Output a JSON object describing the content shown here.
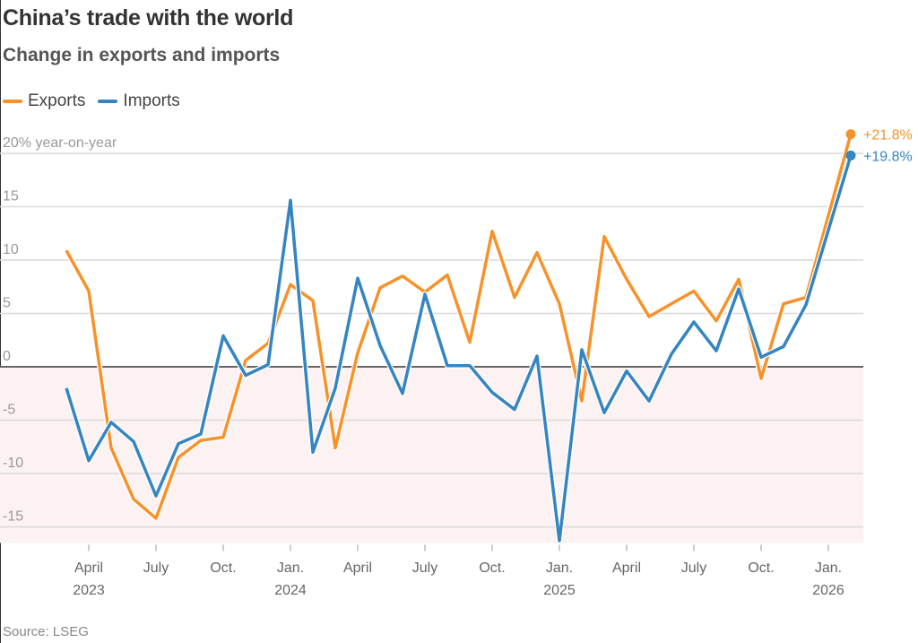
{
  "title": "China’s trade with the world",
  "subtitle": "Change in exports and imports",
  "source": "Source: LSEG",
  "colors": {
    "exports": "#f7922a",
    "imports": "#3585c1",
    "negative_band": "#fdf2f2",
    "grid": "#d9d9d9",
    "zero_line": "#666666"
  },
  "chart_data": {
    "type": "line",
    "title": "China’s trade with the world",
    "subtitle": "Change in exports and imports",
    "ylabel": "20% year-on-year",
    "ylim": [
      -16.5,
      20
    ],
    "yticks": [
      {
        "value": 20,
        "label": "20% year-on-year"
      },
      {
        "value": 15,
        "label": "15"
      },
      {
        "value": 10,
        "label": "10"
      },
      {
        "value": 5,
        "label": "5"
      },
      {
        "value": 0,
        "label": "0"
      },
      {
        "value": -5,
        "label": "-5"
      },
      {
        "value": -10,
        "label": "-10"
      },
      {
        "value": -15,
        "label": "-15"
      }
    ],
    "xticks": [
      {
        "date": "2023-04",
        "label": "April",
        "year": "2023"
      },
      {
        "date": "2023-07",
        "label": "July"
      },
      {
        "date": "2023-10",
        "label": "Oct."
      },
      {
        "date": "2024-01",
        "label": "Jan.",
        "year": "2024"
      },
      {
        "date": "2024-04",
        "label": "April"
      },
      {
        "date": "2024-07",
        "label": "July"
      },
      {
        "date": "2024-10",
        "label": "Oct."
      },
      {
        "date": "2025-01",
        "label": "Jan.",
        "year": "2025"
      },
      {
        "date": "2025-04",
        "label": "April"
      },
      {
        "date": "2025-07",
        "label": "July"
      },
      {
        "date": "2025-10",
        "label": "Oct."
      },
      {
        "date": "2026-01",
        "label": "Jan.",
        "year": "2026"
      }
    ],
    "grid": true,
    "legend": "top-left",
    "x": [
      "2023-03",
      "2023-04",
      "2023-05",
      "2023-06",
      "2023-07",
      "2023-08",
      "2023-09",
      "2023-10",
      "2023-11",
      "2023-12",
      "2024-01",
      "2024-02",
      "2024-03",
      "2024-04",
      "2024-05",
      "2024-06",
      "2024-07",
      "2024-08",
      "2024-09",
      "2024-10",
      "2024-11",
      "2024-12",
      "2025-01",
      "2025-02",
      "2025-03",
      "2025-04",
      "2025-05",
      "2025-06",
      "2025-07",
      "2025-08",
      "2025-09",
      "2025-10",
      "2025-11",
      "2025-12",
      "2026-02"
    ],
    "series": [
      {
        "name": "Exports",
        "color": "#f7922a",
        "end_label": "+21.8%",
        "values": [
          10.9,
          7.1,
          -7.6,
          -12.4,
          -14.2,
          -8.5,
          -6.9,
          -6.6,
          0.6,
          2.2,
          7.7,
          6.2,
          -7.6,
          1.3,
          7.4,
          8.5,
          7.0,
          8.6,
          2.3,
          12.7,
          6.5,
          10.7,
          5.9,
          -3.2,
          12.2,
          8.2,
          4.7,
          5.9,
          7.1,
          4.3,
          8.2,
          -1.1,
          5.9,
          6.5,
          21.8
        ]
      },
      {
        "name": "Imports",
        "color": "#3585c1",
        "end_label": "+19.8%",
        "values": [
          -2.0,
          -8.8,
          -5.2,
          -7.0,
          -12.1,
          -7.2,
          -6.3,
          2.9,
          -0.8,
          0.2,
          15.6,
          -8.0,
          -2.0,
          8.3,
          2.0,
          -2.5,
          6.8,
          0.1,
          0.1,
          -2.4,
          -4.0,
          1.0,
          -16.3,
          1.6,
          -4.3,
          -0.4,
          -3.2,
          1.2,
          4.2,
          1.5,
          7.3,
          0.9,
          1.9,
          5.8,
          19.8
        ]
      }
    ]
  }
}
